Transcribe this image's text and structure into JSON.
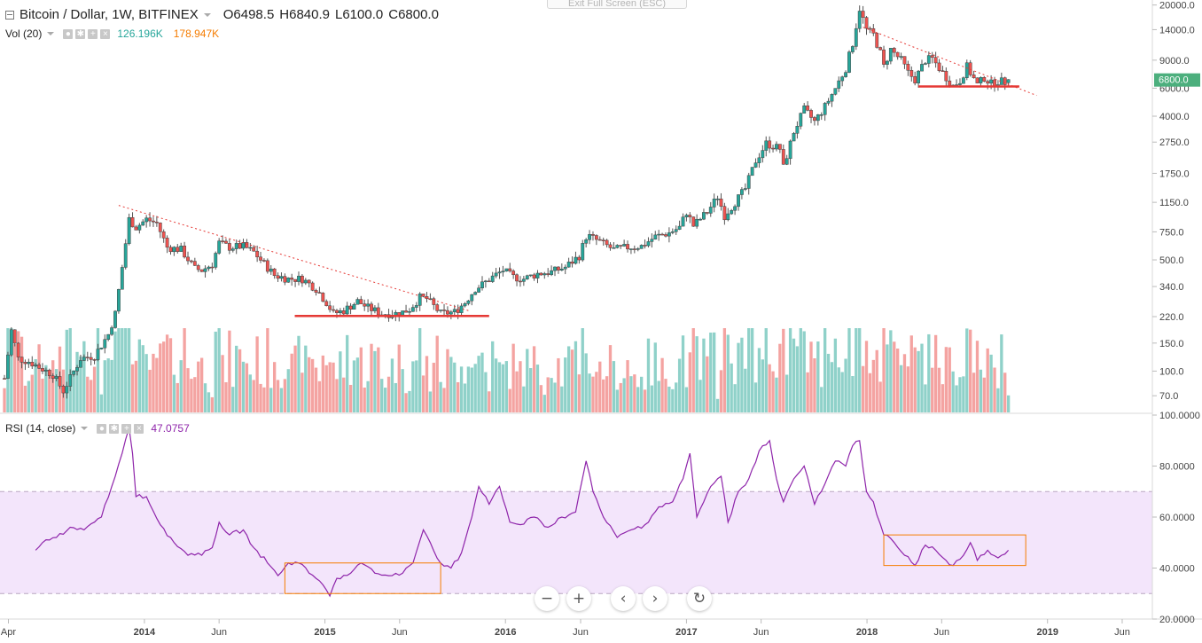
{
  "header": {
    "symbol": "Bitcoin / Dollar, 1W, BITFINEX",
    "open": "O6498.5",
    "high": "H6840.9",
    "low": "L6100.0",
    "close": "C6800.0",
    "vol_label": "Vol (20)",
    "vol_value_1": "126.196K",
    "vol_value_2": "178.947K",
    "rsi_label": "RSI (14, close)",
    "rsi_value": "47.0757",
    "exit_fullscreen": "Exit Full Screen (ESC)"
  },
  "colors": {
    "up": "#26a69a",
    "down": "#ef5350",
    "vol_up": "#8fd1c9",
    "vol_down": "#f4a3a1",
    "rsi_line": "#8e24aa",
    "rsi_band": "#f3e5fb",
    "trend_red": "#e53935",
    "box_orange": "#f57c00",
    "price_label": "#4caf7d"
  },
  "nav_buttons": [
    {
      "name": "zoom-out-button",
      "glyph": "−"
    },
    {
      "name": "zoom-in-button",
      "glyph": "+"
    },
    {
      "name": "scroll-left-button",
      "glyph": "‹"
    },
    {
      "name": "scroll-right-button",
      "glyph": "›"
    },
    {
      "name": "reset-chart-button",
      "glyph": "↻"
    }
  ],
  "chart_data": [
    {
      "type": "candlestick",
      "title": "Bitcoin / Dollar, 1W, BITFINEX",
      "x_range": [
        "2013-03-15",
        "2019-08-01"
      ],
      "y_scale": "log",
      "y_range": [
        55,
        21500
      ],
      "y_ticks": [
        20000.0,
        14000.0,
        9000.0,
        6000.0,
        4000.0,
        2750.0,
        1750.0,
        1150.0,
        750.0,
        500.0,
        340.0,
        220.0,
        150.0,
        100.0,
        70.0
      ],
      "y_tick_labels": [
        "20000.0",
        "14000.0",
        "9000.0",
        "6000.0",
        "4000.0",
        "2750.0",
        "1750.0",
        "1150.0",
        "750.0",
        "500.0",
        "340.0",
        "220.0",
        "150.0",
        "100.0",
        "70.0"
      ],
      "x_tick_labels": [
        {
          "date": "2013-04-01",
          "label": "Apr"
        },
        {
          "date": "2014-01-01",
          "label": "2014"
        },
        {
          "date": "2014-06-01",
          "label": "Jun"
        },
        {
          "date": "2015-01-01",
          "label": "2015"
        },
        {
          "date": "2015-06-01",
          "label": "Jun"
        },
        {
          "date": "2016-01-01",
          "label": "2016"
        },
        {
          "date": "2016-06-01",
          "label": "Jun"
        },
        {
          "date": "2017-01-01",
          "label": "2017"
        },
        {
          "date": "2017-06-01",
          "label": "Jun"
        },
        {
          "date": "2018-01-01",
          "label": "2018"
        },
        {
          "date": "2018-06-01",
          "label": "Jun"
        },
        {
          "date": "2019-01-01",
          "label": "2019"
        },
        {
          "date": "2019-06-01",
          "label": "Jun"
        }
      ],
      "series_start": "2013-03-24",
      "series_interval": "1 week",
      "last_price_label": "6800.0",
      "last_price": 6800,
      "price_anchors": [
        [
          "2013-03-24",
          90
        ],
        [
          "2013-04-07",
          180
        ],
        [
          "2013-04-21",
          120
        ],
        [
          "2013-05-12",
          115
        ],
        [
          "2013-06-30",
          95
        ],
        [
          "2013-07-21",
          75
        ],
        [
          "2013-08-25",
          120
        ],
        [
          "2013-09-22",
          125
        ],
        [
          "2013-10-20",
          170
        ],
        [
          "2013-11-03",
          230
        ],
        [
          "2013-11-17",
          450
        ],
        [
          "2013-12-01",
          900
        ],
        [
          "2013-12-15",
          800
        ],
        [
          "2014-01-05",
          900
        ],
        [
          "2014-01-26",
          850
        ],
        [
          "2014-02-16",
          600
        ],
        [
          "2014-03-16",
          580
        ],
        [
          "2014-04-13",
          440
        ],
        [
          "2014-04-27",
          430
        ],
        [
          "2014-05-18",
          470
        ],
        [
          "2014-06-01",
          640
        ],
        [
          "2014-06-22",
          600
        ],
        [
          "2014-07-20",
          610
        ],
        [
          "2014-08-10",
          560
        ],
        [
          "2014-08-24",
          500
        ],
        [
          "2014-09-21",
          400
        ],
        [
          "2014-10-19",
          380
        ],
        [
          "2014-11-16",
          380
        ],
        [
          "2014-12-14",
          330
        ],
        [
          "2015-01-04",
          270
        ],
        [
          "2015-01-18",
          230
        ],
        [
          "2015-02-08",
          240
        ],
        [
          "2015-03-08",
          275
        ],
        [
          "2015-03-29",
          250
        ],
        [
          "2015-04-26",
          230
        ],
        [
          "2015-05-31",
          230
        ],
        [
          "2015-06-21",
          245
        ],
        [
          "2015-07-12",
          290
        ],
        [
          "2015-07-26",
          285
        ],
        [
          "2015-08-23",
          230
        ],
        [
          "2015-09-20",
          235
        ],
        [
          "2015-10-11",
          270
        ],
        [
          "2015-11-01",
          330
        ],
        [
          "2015-11-15",
          350
        ],
        [
          "2015-12-06",
          390
        ],
        [
          "2015-12-27",
          430
        ],
        [
          "2016-01-17",
          390
        ],
        [
          "2016-02-07",
          380
        ],
        [
          "2016-03-06",
          410
        ],
        [
          "2016-04-03",
          420
        ],
        [
          "2016-05-01",
          450
        ],
        [
          "2016-05-29",
          530
        ],
        [
          "2016-06-12",
          700
        ],
        [
          "2016-06-19",
          700
        ],
        [
          "2016-07-10",
          650
        ],
        [
          "2016-08-07",
          580
        ],
        [
          "2016-09-04",
          600
        ],
        [
          "2016-10-02",
          610
        ],
        [
          "2016-10-30",
          700
        ],
        [
          "2016-11-27",
          740
        ],
        [
          "2016-12-18",
          800
        ],
        [
          "2017-01-01",
          1000
        ],
        [
          "2017-01-15",
          820
        ],
        [
          "2017-02-12",
          1000
        ],
        [
          "2017-03-05",
          1250
        ],
        [
          "2017-03-19",
          950
        ],
        [
          "2017-04-09",
          1150
        ],
        [
          "2017-04-30",
          1400
        ],
        [
          "2017-05-21",
          2100
        ],
        [
          "2017-06-11",
          2700
        ],
        [
          "2017-07-09",
          2500
        ],
        [
          "2017-07-16",
          1900
        ],
        [
          "2017-08-06",
          3200
        ],
        [
          "2017-08-27",
          4400
        ],
        [
          "2017-09-17",
          3700
        ],
        [
          "2017-10-08",
          4600
        ],
        [
          "2017-10-29",
          6000
        ],
        [
          "2017-11-19",
          8000
        ],
        [
          "2017-12-03",
          11500
        ],
        [
          "2017-12-17",
          19000
        ],
        [
          "2017-12-31",
          14000
        ],
        [
          "2018-01-14",
          13000
        ],
        [
          "2018-01-28",
          10000
        ],
        [
          "2018-02-04",
          8200
        ],
        [
          "2018-02-18",
          10500
        ],
        [
          "2018-03-11",
          9000
        ],
        [
          "2018-03-25",
          7500
        ],
        [
          "2018-04-08",
          6800
        ],
        [
          "2018-04-29",
          9000
        ],
        [
          "2018-05-13",
          9200
        ],
        [
          "2018-06-03",
          7500
        ],
        [
          "2018-06-24",
          6200
        ],
        [
          "2018-07-08",
          6700
        ],
        [
          "2018-07-22",
          8200
        ],
        [
          "2018-08-12",
          6300
        ],
        [
          "2018-08-26",
          7000
        ],
        [
          "2018-09-09",
          6400
        ],
        [
          "2018-09-23",
          6650
        ],
        [
          "2018-10-07",
          6560
        ],
        [
          "2018-10-14",
          6800
        ]
      ],
      "volume_series": [
        {
          "name": "Vol (20)",
          "value_label": "126.196K",
          "approx_range": [
            0,
            200000
          ]
        }
      ],
      "trendlines": [
        {
          "from": [
            "2013-11-10",
            1100
          ],
          "to": [
            "2015-10-18",
            240
          ],
          "style": "dotted",
          "color": "#e53935"
        },
        {
          "from": [
            "2017-12-24",
            14500
          ],
          "to": [
            "2018-12-10",
            5400
          ],
          "style": "dotted",
          "color": "#e53935"
        }
      ],
      "support_lines": [
        {
          "from": "2014-11-01",
          "to": "2015-11-29",
          "value": 222
        },
        {
          "from": "2018-04-15",
          "to": "2018-11-05",
          "value": 6150
        }
      ]
    },
    {
      "type": "line",
      "title": "RSI (14, close)",
      "series": [
        {
          "name": "RSI (14, close)",
          "last_value": 47.0757
        }
      ],
      "y_range": [
        20,
        100
      ],
      "y_ticks": [
        100,
        80,
        60,
        40,
        20
      ],
      "y_tick_labels": [
        "100.0000",
        "80.0000",
        "60.0000",
        "40.0000",
        "20.0000"
      ],
      "band": [
        30,
        70
      ],
      "rsi_anchors": [
        [
          "2013-05-26",
          47
        ],
        [
          "2013-06-09",
          50
        ],
        [
          "2013-07-07",
          52
        ],
        [
          "2013-08-04",
          56
        ],
        [
          "2013-09-01",
          55
        ],
        [
          "2013-10-06",
          60
        ],
        [
          "2013-10-27",
          72
        ],
        [
          "2013-11-17",
          85
        ],
        [
          "2013-12-01",
          95
        ],
        [
          "2013-12-08",
          85
        ],
        [
          "2013-12-15",
          68
        ],
        [
          "2014-01-05",
          68
        ],
        [
          "2014-02-02",
          57
        ],
        [
          "2014-03-02",
          50
        ],
        [
          "2014-03-30",
          45
        ],
        [
          "2014-04-27",
          45
        ],
        [
          "2014-05-18",
          48
        ],
        [
          "2014-06-01",
          58
        ],
        [
          "2014-06-22",
          53
        ],
        [
          "2014-07-20",
          55
        ],
        [
          "2014-08-10",
          48
        ],
        [
          "2014-09-07",
          42
        ],
        [
          "2014-09-28",
          37
        ],
        [
          "2014-10-19",
          42
        ],
        [
          "2014-11-09",
          42
        ],
        [
          "2014-11-30",
          38
        ],
        [
          "2014-12-21",
          35
        ],
        [
          "2015-01-11",
          29
        ],
        [
          "2015-01-25",
          36
        ],
        [
          "2015-02-22",
          38
        ],
        [
          "2015-03-15",
          42
        ],
        [
          "2015-04-12",
          38
        ],
        [
          "2015-05-10",
          37
        ],
        [
          "2015-06-07",
          38
        ],
        [
          "2015-06-28",
          42
        ],
        [
          "2015-07-19",
          55
        ],
        [
          "2015-08-02",
          50
        ],
        [
          "2015-08-23",
          42
        ],
        [
          "2015-09-13",
          40
        ],
        [
          "2015-10-04",
          46
        ],
        [
          "2015-10-25",
          60
        ],
        [
          "2015-11-08",
          72
        ],
        [
          "2015-11-29",
          65
        ],
        [
          "2015-12-20",
          72
        ],
        [
          "2016-01-10",
          58
        ],
        [
          "2016-01-31",
          57
        ],
        [
          "2016-02-28",
          60
        ],
        [
          "2016-03-27",
          56
        ],
        [
          "2016-04-24",
          60
        ],
        [
          "2016-05-22",
          62
        ],
        [
          "2016-06-12",
          82
        ],
        [
          "2016-06-26",
          70
        ],
        [
          "2016-07-17",
          60
        ],
        [
          "2016-08-14",
          52
        ],
        [
          "2016-09-11",
          55
        ],
        [
          "2016-10-09",
          57
        ],
        [
          "2016-11-06",
          64
        ],
        [
          "2016-12-04",
          66
        ],
        [
          "2016-12-25",
          75
        ],
        [
          "2017-01-08",
          85
        ],
        [
          "2017-01-22",
          60
        ],
        [
          "2017-02-19",
          72
        ],
        [
          "2017-03-12",
          76
        ],
        [
          "2017-03-26",
          58
        ],
        [
          "2017-04-16",
          70
        ],
        [
          "2017-05-07",
          75
        ],
        [
          "2017-05-28",
          86
        ],
        [
          "2017-06-18",
          90
        ],
        [
          "2017-07-02",
          75
        ],
        [
          "2017-07-16",
          66
        ],
        [
          "2017-08-06",
          75
        ],
        [
          "2017-08-27",
          80
        ],
        [
          "2017-09-17",
          65
        ],
        [
          "2017-10-08",
          73
        ],
        [
          "2017-10-29",
          82
        ],
        [
          "2017-11-19",
          80
        ],
        [
          "2017-12-03",
          88
        ],
        [
          "2017-12-17",
          90
        ],
        [
          "2017-12-31",
          70
        ],
        [
          "2018-01-14",
          66
        ],
        [
          "2018-02-04",
          53
        ],
        [
          "2018-02-25",
          50
        ],
        [
          "2018-03-18",
          45
        ],
        [
          "2018-04-08",
          41
        ],
        [
          "2018-04-29",
          49
        ],
        [
          "2018-05-20",
          47
        ],
        [
          "2018-06-10",
          43
        ],
        [
          "2018-06-24",
          41
        ],
        [
          "2018-07-15",
          45
        ],
        [
          "2018-07-29",
          50
        ],
        [
          "2018-08-12",
          43
        ],
        [
          "2018-09-02",
          47
        ],
        [
          "2018-09-23",
          44
        ],
        [
          "2018-10-14",
          47
        ]
      ],
      "highlight_boxes": [
        {
          "from": "2014-10-12",
          "to": "2015-08-23",
          "y_range": [
            30,
            42
          ]
        },
        {
          "from": "2018-02-04",
          "to": "2018-11-18",
          "y_range": [
            41,
            53
          ]
        }
      ]
    }
  ]
}
